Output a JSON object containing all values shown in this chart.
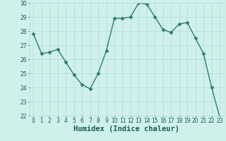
{
  "xlabel": "Humidex (Indice chaleur)",
  "x": [
    0,
    1,
    2,
    3,
    4,
    5,
    6,
    7,
    8,
    9,
    10,
    11,
    12,
    13,
    14,
    15,
    16,
    17,
    18,
    19,
    20,
    21,
    22,
    23
  ],
  "y": [
    27.8,
    26.4,
    26.5,
    26.7,
    25.8,
    24.9,
    24.2,
    23.9,
    25.0,
    26.6,
    28.9,
    28.9,
    29.0,
    30.0,
    29.9,
    29.0,
    28.1,
    27.9,
    28.5,
    28.6,
    27.5,
    26.4,
    24.0,
    21.9
  ],
  "line_color": "#2e7d6e",
  "marker": "D",
  "marker_size": 2.5,
  "line_width": 1.0,
  "background_color": "#cff0eb",
  "grid_color": "#b0ddd8",
  "ylim": [
    22,
    30
  ],
  "yticks": [
    22,
    23,
    24,
    25,
    26,
    27,
    28,
    29,
    30
  ],
  "xticks": [
    0,
    1,
    2,
    3,
    4,
    5,
    6,
    7,
    8,
    9,
    10,
    11,
    12,
    13,
    14,
    15,
    16,
    17,
    18,
    19,
    20,
    21,
    22,
    23
  ],
  "tick_fontsize": 5.5,
  "xlabel_fontsize": 7.5
}
